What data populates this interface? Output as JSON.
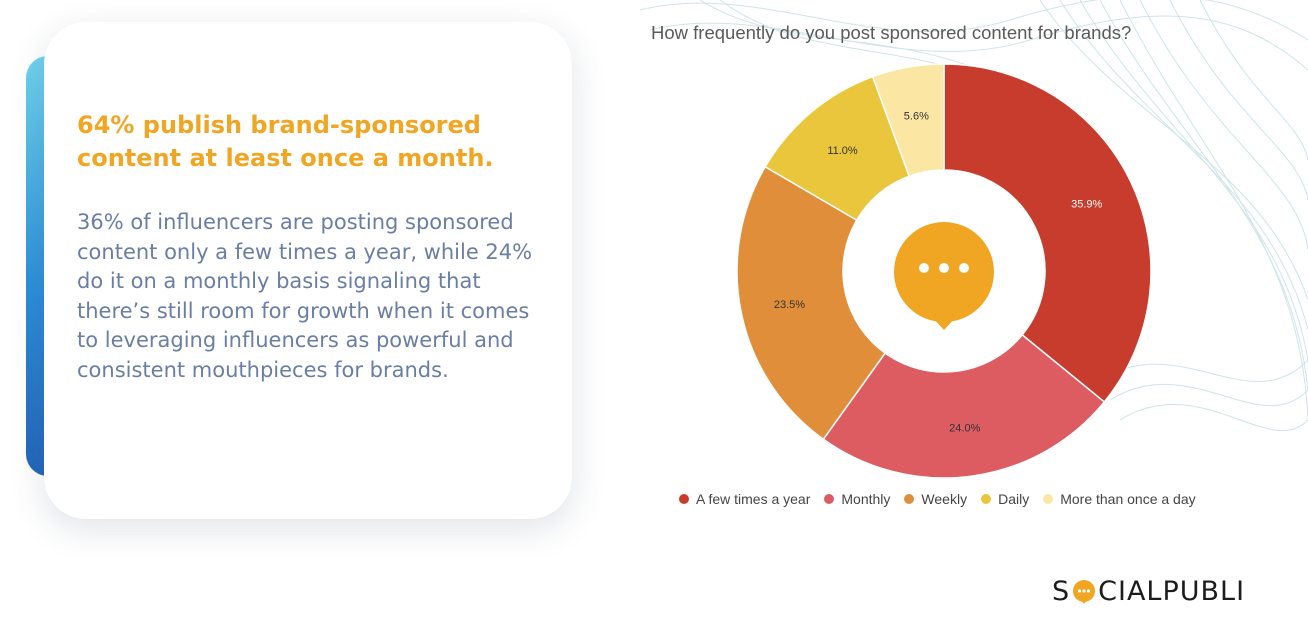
{
  "card": {
    "headline": "64% publish brand-sponsored content at least once a month.",
    "body": "36% of influencers are posting sponsored content only a few times a year, while 24% do it on a monthly basis signaling that there’s still room for growth when it comes to leveraging influencers as powerful and consistent mouthpieces for brands."
  },
  "chart_data": {
    "type": "pie",
    "title": "How frequently do you post sponsored content for brands?",
    "donut": true,
    "legend_position": "bottom",
    "center_icon": "speech-bubble-icon",
    "categories": [
      "A few times a year",
      "Monthly",
      "Weekly",
      "Daily",
      "More than once a day"
    ],
    "values": [
      35.9,
      24.0,
      23.5,
      11.0,
      5.6
    ],
    "labels": [
      "35.9%",
      "24.0%",
      "23.5%",
      "11.0%",
      "5.6%"
    ],
    "colors": [
      "#c73c2c",
      "#dc5c62",
      "#e18e3a",
      "#eac63c",
      "#fbe6a3"
    ]
  },
  "brand": {
    "logo_left": "S",
    "logo_right": "CIALPUBLI",
    "accent": "#f0a623"
  }
}
